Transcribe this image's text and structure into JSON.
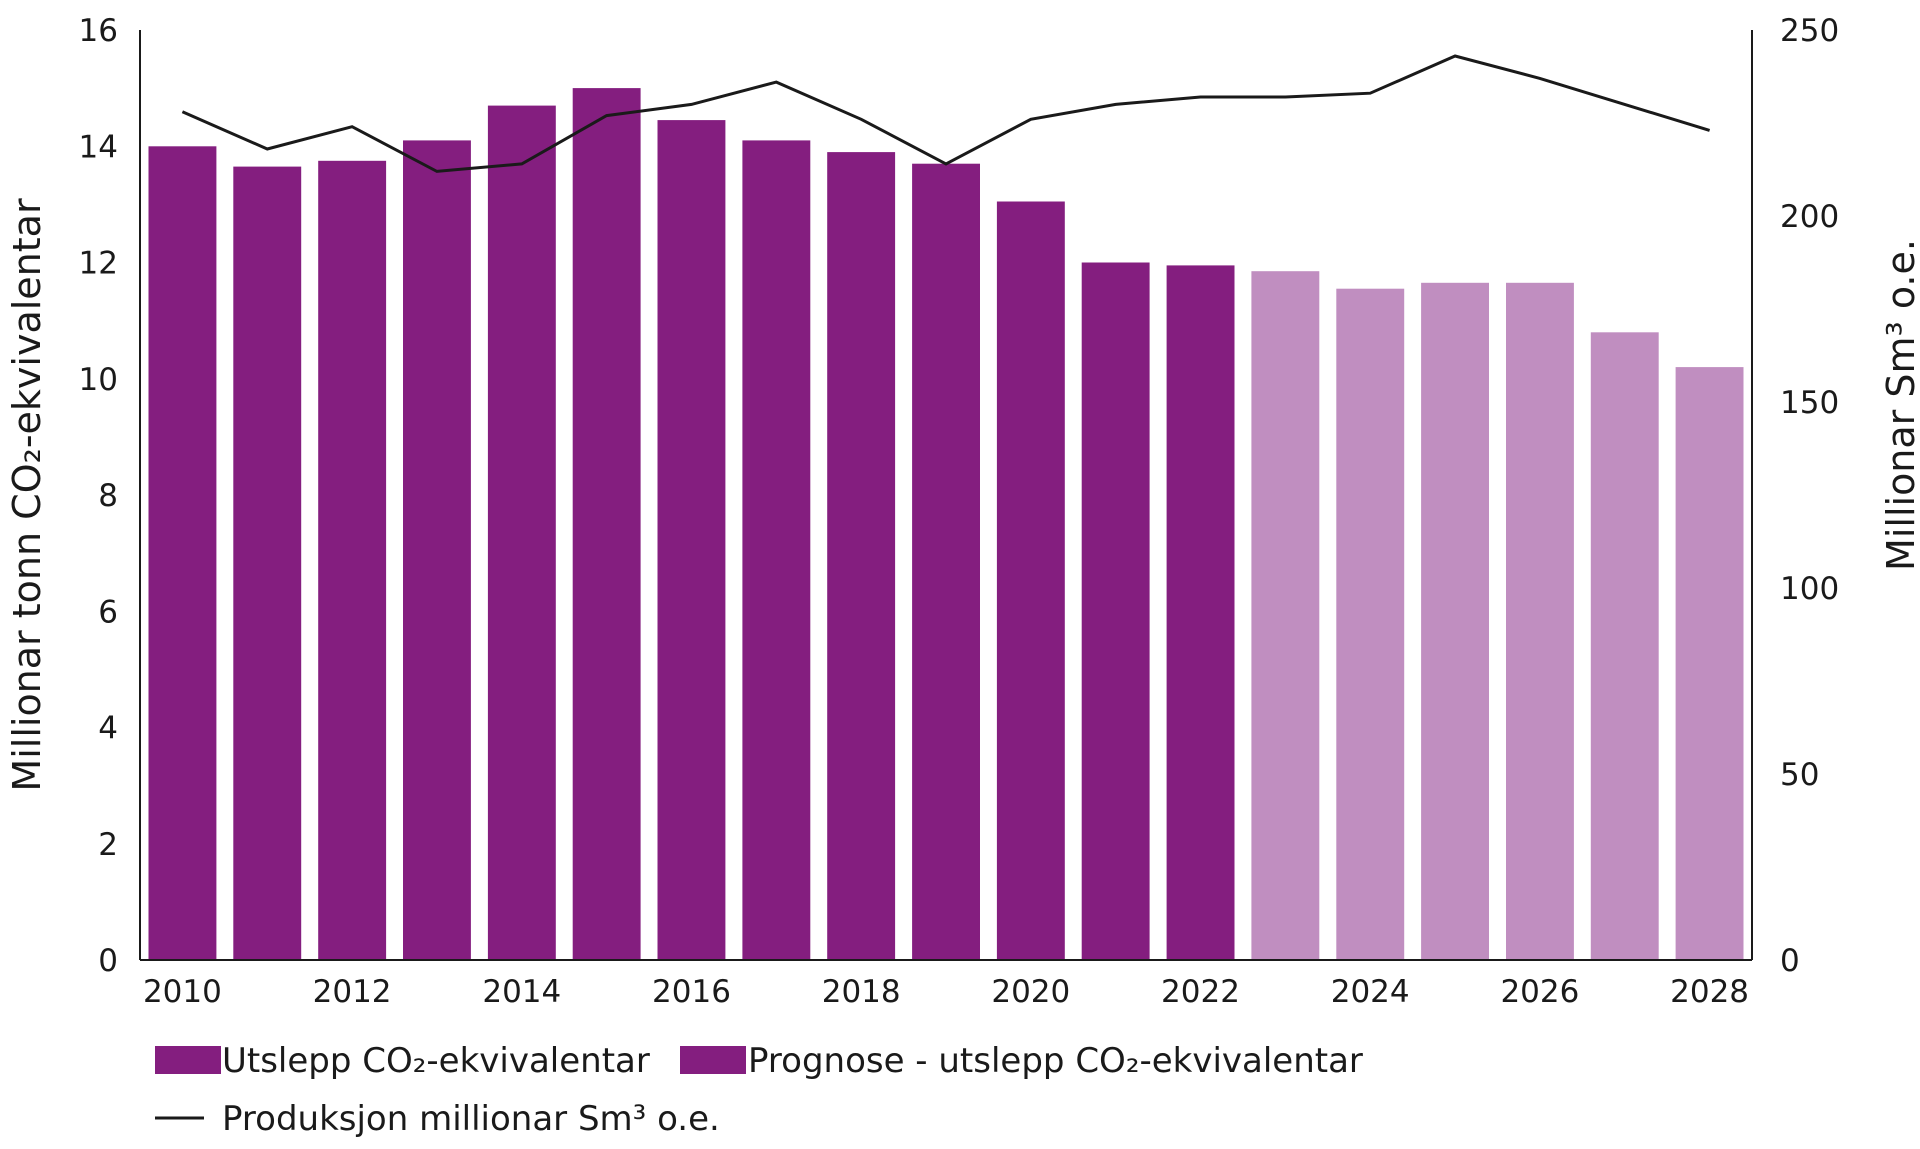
{
  "chart_data": {
    "type": "bar",
    "categories": [
      "2010",
      "2011",
      "2012",
      "2013",
      "2014",
      "2015",
      "2016",
      "2017",
      "2018",
      "2019",
      "2020",
      "2021",
      "2022",
      "2023",
      "2024",
      "2025",
      "2026",
      "2027",
      "2028"
    ],
    "x_tick_labels": [
      "2010",
      "2012",
      "2014",
      "2016",
      "2018",
      "2020",
      "2022",
      "2024",
      "2026",
      "2028"
    ],
    "series": [
      {
        "name": "Utslepp CO₂-ekvivalentar",
        "kind": "bar",
        "axis": "left",
        "color": "#841e7f",
        "values": [
          14.0,
          13.65,
          13.75,
          14.1,
          14.7,
          15.0,
          14.45,
          14.1,
          13.9,
          13.7,
          13.05,
          12.0,
          11.95,
          null,
          null,
          null,
          null,
          null,
          null
        ]
      },
      {
        "name": "Prognose - utslepp CO₂-ekvivalentar",
        "kind": "bar",
        "axis": "left",
        "color": "#c08ec0",
        "values": [
          null,
          null,
          null,
          null,
          null,
          null,
          null,
          null,
          null,
          null,
          null,
          null,
          null,
          11.85,
          11.55,
          11.65,
          11.65,
          10.8,
          10.2
        ]
      },
      {
        "name": "Produksjon millionar Sm³ o.e.",
        "kind": "line",
        "axis": "right",
        "color": "#1a1a1a",
        "values": [
          228,
          218,
          224,
          212,
          214,
          227,
          230,
          236,
          226,
          214,
          226,
          230,
          232,
          232,
          233,
          243,
          237,
          230,
          223
        ]
      }
    ],
    "left_axis": {
      "label": "Millionar tonn CO₂-ekvivalentar",
      "range": [
        0,
        16
      ],
      "ticks": [
        "0",
        "2",
        "4",
        "6",
        "8",
        "10",
        "12",
        "14",
        "16"
      ]
    },
    "right_axis": {
      "label": "Millionar Sm³ o.e.",
      "range": [
        0,
        250
      ],
      "ticks": [
        "0",
        "50",
        "100",
        "150",
        "200",
        "250"
      ]
    },
    "grid": false,
    "legend_position": "bottom-left",
    "legend_bar_color": "#841e7f"
  }
}
